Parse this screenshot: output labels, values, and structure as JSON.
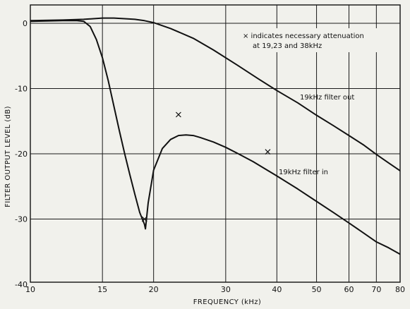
{
  "chart_data": {
    "type": "line",
    "title": "",
    "xlabel": "FREQUENCY (kHz)",
    "ylabel": "FILTER OUTPUT LEVEL (dB)",
    "x_scale": "log",
    "xlim": [
      10,
      80
    ],
    "ylim": [
      -40,
      2
    ],
    "x_ticks": [
      10,
      15,
      20,
      30,
      40,
      50,
      60,
      70,
      80
    ],
    "x_tick_labels": [
      "10",
      "15",
      "20",
      "30",
      "40",
      "50",
      "60",
      "70",
      "80"
    ],
    "y_ticks": [
      0,
      -10,
      -20,
      -30,
      -40
    ],
    "y_tick_labels": [
      "0",
      "-10",
      "-20",
      "-30",
      "-40"
    ],
    "grid": true,
    "series": [
      {
        "name": "19kHz filter out",
        "x": [
          10,
          12,
          13.5,
          15,
          16,
          17,
          18,
          19,
          20,
          22,
          25,
          28,
          32,
          36,
          40,
          45,
          50,
          55,
          60,
          65,
          70,
          75,
          80
        ],
        "y": [
          0.4,
          0.5,
          0.6,
          0.8,
          0.8,
          0.7,
          0.6,
          0.4,
          0.1,
          -0.8,
          -2.3,
          -4.1,
          -6.4,
          -8.5,
          -10.3,
          -12.2,
          -14.1,
          -15.7,
          -17.2,
          -18.6,
          -20.1,
          -21.4,
          -22.6
        ]
      },
      {
        "name": "19kHz filter in",
        "x": [
          10,
          12,
          13,
          13.5,
          14,
          14.5,
          15,
          15.5,
          16,
          16.5,
          17,
          17.5,
          18,
          18.5,
          19,
          19.1,
          19.4,
          20,
          21,
          22,
          23,
          24,
          25,
          26,
          28,
          30,
          32,
          35,
          40,
          45,
          50,
          55,
          60,
          65,
          70,
          75,
          80
        ],
        "y": [
          0.3,
          0.4,
          0.4,
          0.3,
          -0.5,
          -2.5,
          -5.3,
          -8.8,
          -12.7,
          -16.5,
          -20.0,
          -23.2,
          -26.2,
          -29.0,
          -30.8,
          -31.5,
          -27.5,
          -22.5,
          -19.2,
          -17.8,
          -17.2,
          -17.1,
          -17.2,
          -17.5,
          -18.2,
          -19.0,
          -19.9,
          -21.2,
          -23.4,
          -25.4,
          -27.3,
          -29.0,
          -30.6,
          -32.1,
          -33.5,
          -34.4,
          -35.4
        ]
      }
    ],
    "markers": [
      {
        "symbol": "×",
        "x": 19,
        "y": -30
      },
      {
        "symbol": "×",
        "x": 23,
        "y": -14
      },
      {
        "symbol": "×",
        "x": 38,
        "y": -19.7
      }
    ],
    "annotations": [
      "× indicates necessary attenuation",
      "at 19,23 and 38kHz",
      "19kHz filter out",
      "19kHz filter in"
    ]
  }
}
